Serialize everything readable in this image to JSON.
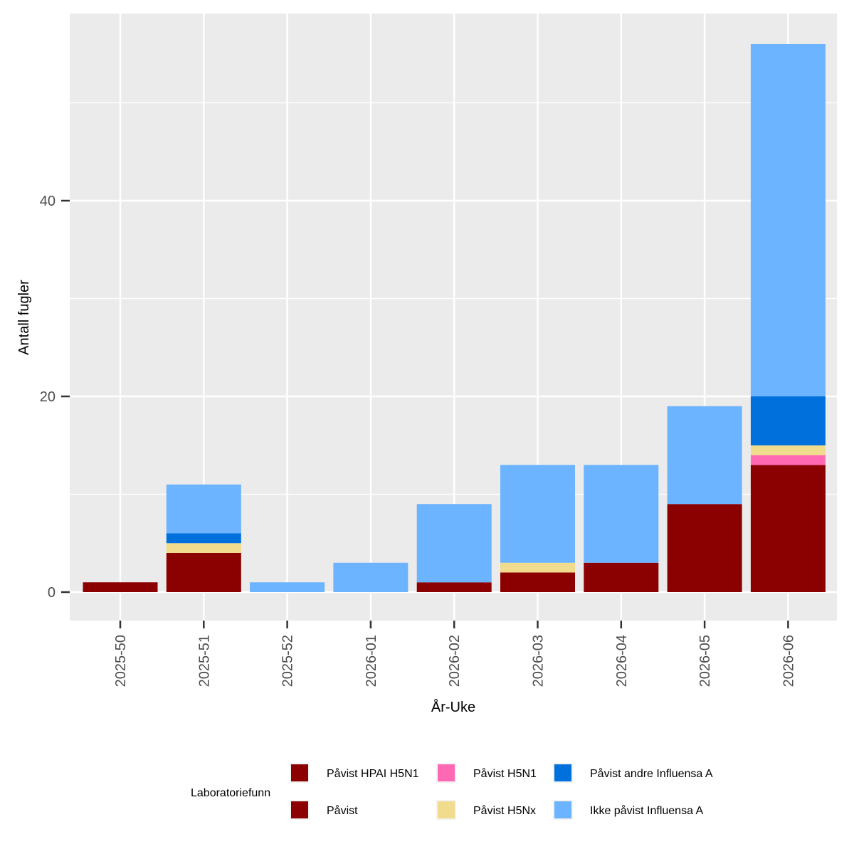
{
  "chart_data": {
    "type": "bar",
    "stacked": true,
    "title": "",
    "xlabel": "År-Uke",
    "ylabel": "Antall fugler",
    "categories": [
      "2025-50",
      "2025-51",
      "2025-52",
      "2026-01",
      "2026-02",
      "2026-03",
      "2026-04",
      "2026-05",
      "2026-06"
    ],
    "ylim": [
      -3,
      59
    ],
    "yticks": [
      0,
      20,
      40
    ],
    "ytick_labels": [
      "0",
      "20",
      "40"
    ],
    "grid": true,
    "series": [
      {
        "name": "Påvist HPAI H5N1",
        "color": "#8b0000",
        "values": [
          1,
          4,
          0,
          0,
          1,
          2,
          3,
          9,
          13
        ]
      },
      {
        "name": "Påvist",
        "color": "#8b0000",
        "values": [
          0,
          0,
          0,
          0,
          0,
          0,
          0,
          0,
          0
        ]
      },
      {
        "name": "Påvist H5N1",
        "color": "#ff69b4",
        "values": [
          0,
          0,
          0,
          0,
          0,
          0,
          0,
          0,
          1
        ]
      },
      {
        "name": "Påvist H5Nx",
        "color": "#f0dc8c",
        "values": [
          0,
          1,
          0,
          0,
          0,
          1,
          0,
          0,
          1
        ]
      },
      {
        "name": "Påvist andre Influensa A",
        "color": "#0070dd",
        "values": [
          0,
          1,
          0,
          0,
          0,
          0,
          0,
          0,
          5
        ]
      },
      {
        "name": "Ikke påvist Influensa A",
        "color": "#6cb4ff",
        "values": [
          0,
          5,
          1,
          3,
          8,
          10,
          10,
          10,
          36
        ]
      }
    ],
    "legend": {
      "title": "Laboratoriefunn",
      "position": "bottom",
      "order": [
        "Påvist HPAI H5N1",
        "Påvist",
        "Påvist H5N1",
        "Påvist H5Nx",
        "Påvist andre Influensa A",
        "Ikke påvist Influensa A"
      ]
    }
  },
  "colors": {
    "panel_background": "#ebebeb",
    "grid": "#ffffff",
    "tick_label": "#4d4d4d",
    "tick_mark": "#333333"
  }
}
